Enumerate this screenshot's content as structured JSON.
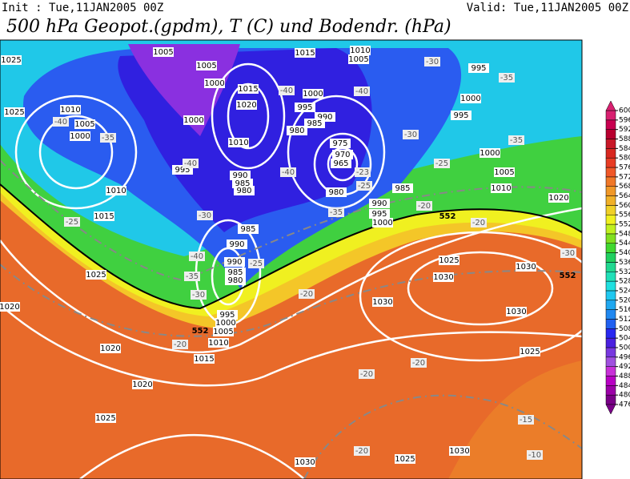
{
  "header": {
    "init": "Init : Tue,11JAN2005 00Z",
    "valid": "Valid: Tue,11JAN2005 00Z",
    "title": "500 hPa Geopot.(gpdm), T (C) und Bodendr. (hPa)"
  },
  "colorbar": {
    "ticks": [
      476,
      480,
      484,
      488,
      492,
      496,
      500,
      504,
      508,
      512,
      516,
      520,
      524,
      528,
      532,
      536,
      540,
      544,
      548,
      552,
      556,
      560,
      564,
      568,
      572,
      576,
      580,
      584,
      588,
      592,
      596,
      600
    ],
    "colors": [
      "#7a0088",
      "#9c00a8",
      "#b800c4",
      "#c830d8",
      "#a050e0",
      "#7838e0",
      "#4a20e0",
      "#2828f0",
      "#2060f0",
      "#2088f0",
      "#20a8f0",
      "#20c8f0",
      "#20e0e0",
      "#20e0b8",
      "#20d890",
      "#20d060",
      "#40d830",
      "#80e020",
      "#c0f020",
      "#f0f020",
      "#f0d028",
      "#f0b028",
      "#f09828",
      "#f07828",
      "#f05828",
      "#e83c24",
      "#d82820",
      "#c81828",
      "#b80030",
      "#c80050",
      "#d82070"
    ]
  },
  "isobar_labels": [
    1025,
    1025,
    1010,
    1005,
    1000,
    1010,
    1015,
    1025,
    1020,
    1020,
    1020,
    1025,
    1005,
    1005,
    1000,
    1000,
    1015,
    1020,
    1010,
    995,
    990,
    985,
    980,
    985,
    990,
    990,
    985,
    980,
    995,
    1000,
    1005,
    1010,
    1015,
    1015,
    1010,
    1005,
    1000,
    995,
    990,
    985,
    980,
    975,
    970,
    965,
    980,
    985,
    990,
    995,
    1000,
    995,
    1000,
    995,
    1000,
    1005,
    1010,
    1020,
    1025,
    1030,
    1030,
    1030,
    1030,
    1025,
    1030,
    1030,
    1025
  ],
  "temperature_labels": [
    -40,
    -35,
    -25,
    -40,
    -30,
    -40,
    -35,
    -30,
    -25,
    -20,
    -40,
    -40,
    -40,
    -35,
    -25,
    -23,
    -30,
    -25,
    -20,
    -20,
    -30,
    -35,
    -35,
    -30,
    -20,
    -20,
    -20,
    -15,
    -10,
    -20
  ],
  "geopotential_labels": [
    552,
    552,
    552
  ]
}
